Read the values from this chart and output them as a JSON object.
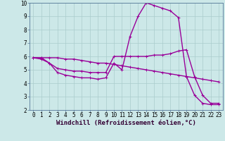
{
  "xlabel": "Windchill (Refroidissement éolien,°C)",
  "bg_color": "#cce8e8",
  "line_color": "#990099",
  "grid_color": "#aacccc",
  "xlim": [
    -0.5,
    23.5
  ],
  "ylim": [
    2,
    10
  ],
  "xticks": [
    0,
    1,
    2,
    3,
    4,
    5,
    6,
    7,
    8,
    9,
    10,
    11,
    12,
    13,
    14,
    15,
    16,
    17,
    18,
    19,
    20,
    21,
    22,
    23
  ],
  "yticks": [
    2,
    3,
    4,
    5,
    6,
    7,
    8,
    9,
    10
  ],
  "line1_x": [
    0,
    1,
    2,
    3,
    4,
    5,
    6,
    7,
    8,
    9,
    10,
    11,
    12,
    13,
    14,
    15,
    16,
    17,
    18,
    19,
    20,
    21,
    22,
    23
  ],
  "line1_y": [
    5.9,
    5.8,
    5.5,
    4.8,
    4.6,
    4.5,
    4.4,
    4.4,
    4.3,
    4.4,
    5.5,
    5.0,
    7.5,
    9.0,
    10.0,
    9.8,
    9.6,
    9.4,
    8.9,
    4.5,
    3.1,
    2.5,
    2.4,
    2.4
  ],
  "line2_x": [
    0,
    1,
    2,
    3,
    4,
    5,
    6,
    7,
    8,
    9,
    10,
    11,
    12,
    13,
    14,
    15,
    16,
    17,
    18,
    19,
    20,
    21,
    22,
    23
  ],
  "line2_y": [
    5.9,
    5.9,
    5.5,
    5.1,
    5.0,
    4.9,
    4.9,
    4.8,
    4.8,
    4.8,
    6.0,
    6.0,
    6.0,
    6.0,
    6.0,
    6.1,
    6.1,
    6.2,
    6.4,
    6.5,
    4.5,
    3.1,
    2.5,
    2.5
  ],
  "line3_x": [
    0,
    1,
    2,
    3,
    4,
    5,
    6,
    7,
    8,
    9,
    10,
    11,
    12,
    13,
    14,
    15,
    16,
    17,
    18,
    19,
    20,
    21,
    22,
    23
  ],
  "line3_y": [
    5.9,
    5.9,
    5.9,
    5.9,
    5.8,
    5.8,
    5.7,
    5.6,
    5.5,
    5.5,
    5.4,
    5.3,
    5.2,
    5.1,
    5.0,
    4.9,
    4.8,
    4.7,
    4.6,
    4.5,
    4.4,
    4.3,
    4.2,
    4.1
  ],
  "marker_size": 3,
  "line_width": 1.0,
  "tick_fontsize": 5.5,
  "label_fontsize": 6.5
}
